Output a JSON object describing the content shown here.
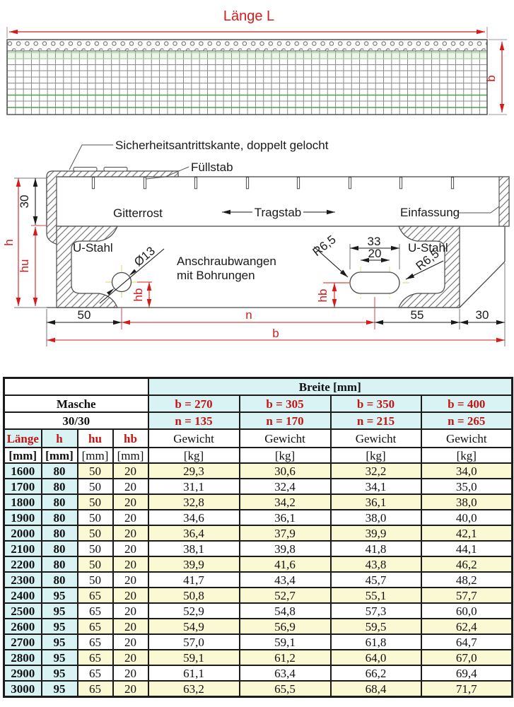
{
  "drawing_top": {
    "length_label": "Länge L",
    "width_label": "b"
  },
  "drawing_section": {
    "labels": {
      "safety_edge": "Sicherheitsantrittskante, doppelt gelocht",
      "fuellstab": "Füllstab",
      "gitterrost": "Gitterrost",
      "tragstab": "Tragstab",
      "einfassung": "Einfassung",
      "u_stahl_left": "U-Stahl",
      "u_stahl_right": "U-Stahl",
      "anschraub_line1": "Anschraubwangen",
      "anschraub_line2": "mit Bohrungen"
    },
    "dims": {
      "h": "h",
      "hu": "hu",
      "hb_left": "hb",
      "hb_right": "hb",
      "top_height": "30",
      "hole_dia": "Ø13",
      "r_left": "R6,5",
      "r_right": "R6,5",
      "slot_outer": "33",
      "slot_inner": "20",
      "d50": "50",
      "n": "n",
      "d55": "55",
      "d30": "30",
      "b": "b"
    }
  },
  "table": {
    "breite_header": "Breite [mm]",
    "masche_label": "Masche",
    "masche_value": "30/30",
    "col_headers": [
      "Länge",
      "h",
      "hu",
      "hb"
    ],
    "col_units": [
      "[mm]",
      "[mm]",
      "[mm]",
      "[mm]"
    ],
    "weight_label": "Gewicht",
    "weight_unit": "[kg]",
    "breite_cols": [
      {
        "b": "b = 270",
        "n": "n = 135"
      },
      {
        "b": "b = 305",
        "n": "n = 170"
      },
      {
        "b": "b = 350",
        "n": "n = 215"
      },
      {
        "b": "b = 400",
        "n": "n = 265"
      }
    ],
    "rows": [
      {
        "l": "1600",
        "h": "80",
        "hu": "50",
        "hb": "20",
        "w": [
          "29,3",
          "30,6",
          "32,2",
          "34,0"
        ]
      },
      {
        "l": "1700",
        "h": "80",
        "hu": "50",
        "hb": "20",
        "w": [
          "31,1",
          "32,4",
          "34,1",
          "35,0"
        ]
      },
      {
        "l": "1800",
        "h": "80",
        "hu": "50",
        "hb": "20",
        "w": [
          "32,8",
          "34,2",
          "36,1",
          "38,0"
        ]
      },
      {
        "l": "1900",
        "h": "80",
        "hu": "50",
        "hb": "20",
        "w": [
          "34,6",
          "36,1",
          "38,0",
          "40,0"
        ]
      },
      {
        "l": "2000",
        "h": "80",
        "hu": "50",
        "hb": "20",
        "w": [
          "36,4",
          "37,9",
          "39,9",
          "42,1"
        ]
      },
      {
        "l": "2100",
        "h": "80",
        "hu": "50",
        "hb": "20",
        "w": [
          "38,1",
          "39,8",
          "41,8",
          "44,1"
        ]
      },
      {
        "l": "2200",
        "h": "80",
        "hu": "50",
        "hb": "20",
        "w": [
          "39,9",
          "41,6",
          "43,8",
          "46,2"
        ]
      },
      {
        "l": "2300",
        "h": "80",
        "hu": "50",
        "hb": "20",
        "w": [
          "41,7",
          "43,4",
          "45,7",
          "48,2"
        ]
      },
      {
        "l": "2400",
        "h": "95",
        "hu": "65",
        "hb": "20",
        "w": [
          "50,8",
          "52,7",
          "55,1",
          "57,7"
        ]
      },
      {
        "l": "2500",
        "h": "95",
        "hu": "65",
        "hb": "20",
        "w": [
          "52,9",
          "54,8",
          "57,3",
          "60,0"
        ]
      },
      {
        "l": "2600",
        "h": "95",
        "hu": "65",
        "hb": "20",
        "w": [
          "54,9",
          "56,9",
          "59,5",
          "62,4"
        ]
      },
      {
        "l": "2700",
        "h": "95",
        "hu": "65",
        "hb": "20",
        "w": [
          "57,0",
          "59,1",
          "61,8",
          "64,7"
        ]
      },
      {
        "l": "2800",
        "h": "95",
        "hu": "65",
        "hb": "20",
        "w": [
          "59,1",
          "61,2",
          "64,0",
          "67,0"
        ]
      },
      {
        "l": "2900",
        "h": "95",
        "hu": "65",
        "hb": "20",
        "w": [
          "61,1",
          "63,4",
          "66,2",
          "69,4"
        ]
      },
      {
        "l": "3000",
        "h": "95",
        "hu": "65",
        "hb": "20",
        "w": [
          "63,2",
          "65,5",
          "68,4",
          "71,7"
        ]
      }
    ]
  },
  "colors": {
    "accent_red": "#d41c1c",
    "table_red": "#c41414",
    "cell_cyan": "#d9f3f5",
    "cell_yellow": "#fbf9d3",
    "centerline_yellow": "#e4dd80"
  }
}
